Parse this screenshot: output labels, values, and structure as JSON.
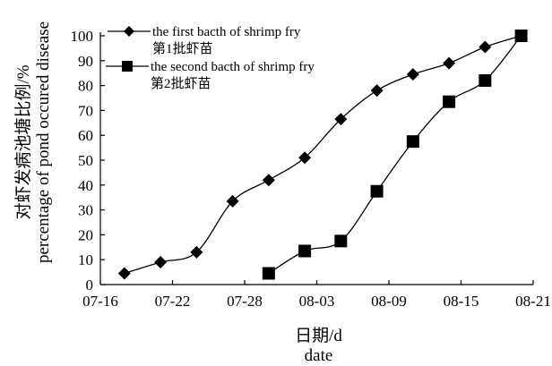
{
  "chart_data": {
    "type": "line",
    "xlabel_zh": "日期/d",
    "xlabel_en": "date",
    "ylabel_zh": "对虾发病池塘比例/%",
    "ylabel_en": "percentage of pond occured disease",
    "x_ticks": [
      "07-16",
      "07-22",
      "07-28",
      "08-03",
      "08-09",
      "08-15",
      "08-21"
    ],
    "xlim": [
      "07-16",
      "08-21"
    ],
    "ylim": [
      0,
      100
    ],
    "y_ticks": [
      0,
      10,
      20,
      30,
      40,
      50,
      60,
      70,
      80,
      90,
      100
    ],
    "legend_position": "top-left",
    "series": [
      {
        "name": "the first bacth of shrimp fry",
        "name_zh": "第1批虾苗",
        "marker": "diamond",
        "color": "#000000",
        "x": [
          "07-18",
          "07-21",
          "07-24",
          "07-27",
          "07-30",
          "08-02",
          "08-05",
          "08-08",
          "08-11",
          "08-14",
          "08-17",
          "08-20"
        ],
        "y": [
          4.5,
          9,
          13,
          33.5,
          42,
          51,
          66.5,
          78,
          84.5,
          89,
          95.5,
          100
        ]
      },
      {
        "name": "the second bacth of shrimp fry",
        "name_zh": "第2批虾苗",
        "marker": "square",
        "color": "#000000",
        "x": [
          "07-30",
          "08-02",
          "08-05",
          "08-08",
          "08-11",
          "08-14",
          "08-17",
          "08-20"
        ],
        "y": [
          4.5,
          13.5,
          17.5,
          37.5,
          57.5,
          73.5,
          82,
          100
        ]
      }
    ]
  }
}
